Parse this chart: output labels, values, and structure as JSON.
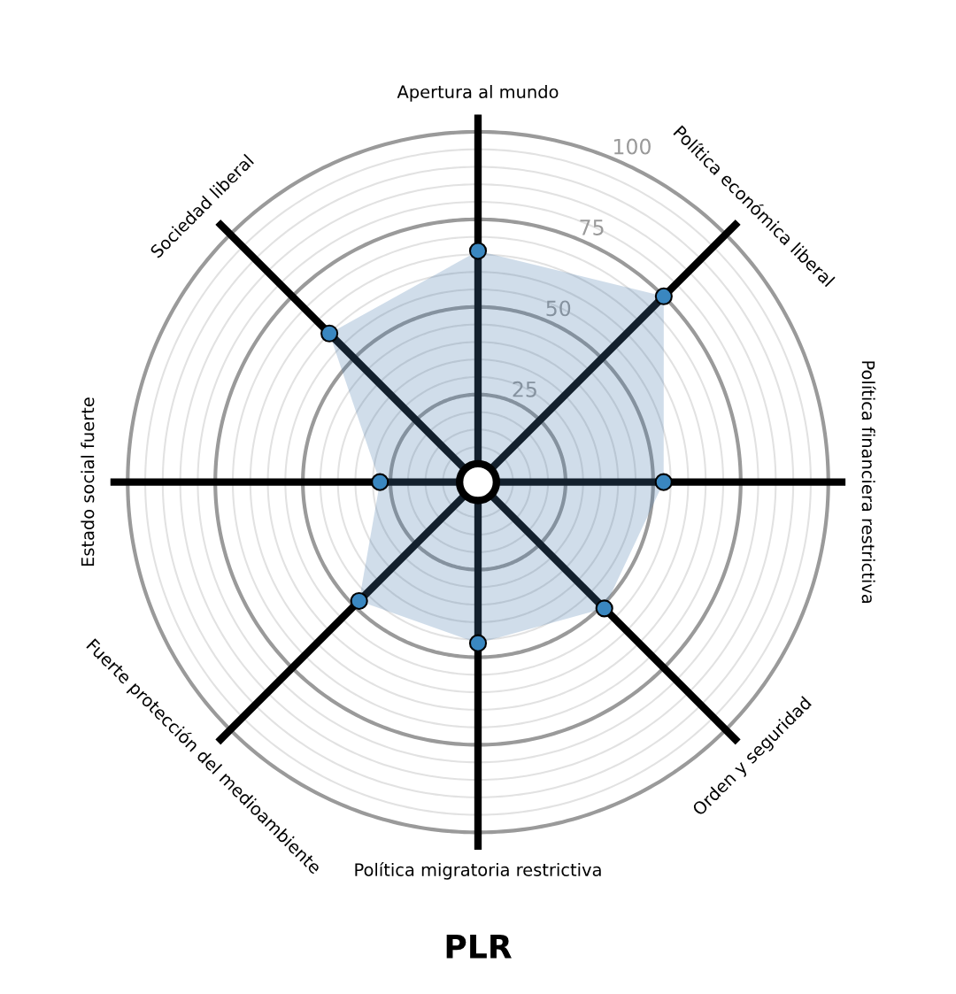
{
  "chart_data": {
    "type": "radar",
    "title": "PLR",
    "categories": [
      "Apertura al mundo",
      "Política económica liberal",
      "Política financiera restrictiva",
      "Orden y seguridad",
      "Política migratoria restrictiva",
      "Fuerte protección del medioambiente",
      "Estado social fuerte",
      "Sociedad liberal"
    ],
    "series": [
      {
        "color": "#487daf",
        "values": [
          66,
          75,
          53,
          51,
          46,
          48,
          28,
          60
        ]
      }
    ],
    "ylim": [
      0,
      105
    ],
    "yticks": [
      25,
      50,
      75,
      100
    ],
    "grid": true,
    "marker": "circle"
  }
}
